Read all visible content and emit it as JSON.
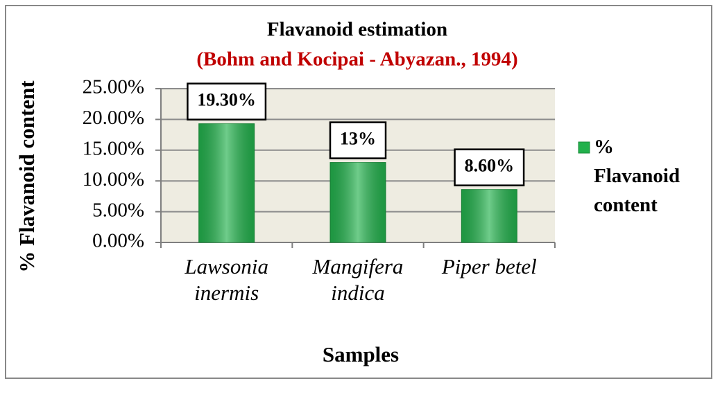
{
  "chart_data": {
    "type": "bar",
    "title": "Flavanoid estimation",
    "subtitle": "(Bohm and Kocipai - Abyazan., 1994)",
    "x_label": "Samples",
    "y_label": "% Flavanoid content",
    "categories": [
      "Lawsonia inermis",
      "Mangifera indica",
      "Piper betel"
    ],
    "series": [
      {
        "name": "% Flavanoid content",
        "color": "#22b14c",
        "values": [
          19.3,
          13,
          8.6
        ],
        "value_labels": [
          "19.30%",
          "13%",
          "8.60%"
        ]
      }
    ],
    "ylim": [
      0,
      25
    ],
    "yticks": [
      {
        "value": 0,
        "label": "0.00%"
      },
      {
        "value": 5,
        "label": "5.00%"
      },
      {
        "value": 10,
        "label": "10.00%"
      },
      {
        "value": 15,
        "label": "15.00%"
      },
      {
        "value": 20,
        "label": "20.00%"
      },
      {
        "value": 25,
        "label": "25.00%"
      }
    ],
    "grid": true,
    "legend": "right"
  }
}
